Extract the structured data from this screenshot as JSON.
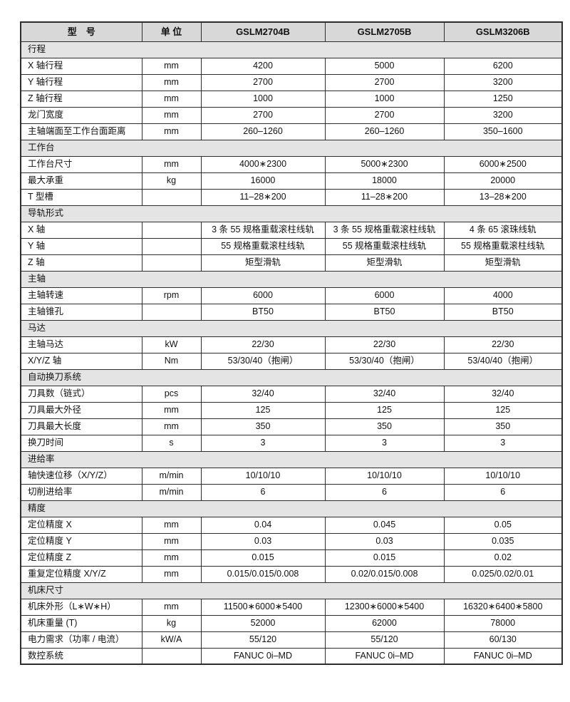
{
  "colors": {
    "border": "#2d2d2d",
    "header_bg": "#d8d8d8",
    "section_bg": "#e4e4e4",
    "text": "#111111",
    "page_bg": "#ffffff"
  },
  "header": {
    "col_model": "型　号",
    "col_unit": "单 位",
    "models": [
      "GSLM2704B",
      "GSLM2705B",
      "GSLM3206B"
    ]
  },
  "sections": [
    {
      "title": "行程",
      "rows": [
        {
          "label": "X 轴行程",
          "unit": "mm",
          "values": [
            "4200",
            "5000",
            "6200"
          ]
        },
        {
          "label": "Y 轴行程",
          "unit": "mm",
          "values": [
            "2700",
            "2700",
            "3200"
          ]
        },
        {
          "label": "Z 轴行程",
          "unit": "mm",
          "values": [
            "1000",
            "1000",
            "1250"
          ]
        },
        {
          "label": "龙门宽度",
          "unit": "mm",
          "values": [
            "2700",
            "2700",
            "3200"
          ]
        },
        {
          "label": "主轴端面至工作台面距离",
          "unit": "mm",
          "values": [
            "260–1260",
            "260–1260",
            "350–1600"
          ]
        }
      ]
    },
    {
      "title": "工作台",
      "rows": [
        {
          "label": "工作台尺寸",
          "unit": "mm",
          "values": [
            "4000∗2300",
            "5000∗2300",
            "6000∗2500"
          ]
        },
        {
          "label": "最大承重",
          "unit": "kg",
          "values": [
            "16000",
            "18000",
            "20000"
          ]
        },
        {
          "label": "T 型槽",
          "unit": "",
          "values": [
            "11–28∗200",
            "11–28∗200",
            "13–28∗200"
          ]
        }
      ]
    },
    {
      "title": "导轨形式",
      "rows": [
        {
          "label": "X 轴",
          "unit": "",
          "values": [
            "3 条 55 规格重载滚柱线轨",
            "3 条 55 规格重载滚柱线轨",
            "4 条 65 滚珠线轨"
          ]
        },
        {
          "label": "Y 轴",
          "unit": "",
          "values": [
            "55 规格重载滚柱线轨",
            "55 规格重载滚柱线轨",
            "55 规格重载滚柱线轨"
          ]
        },
        {
          "label": "Z 轴",
          "unit": "",
          "values": [
            "矩型滑轨",
            "矩型滑轨",
            "矩型滑轨"
          ]
        }
      ]
    },
    {
      "title": "主轴",
      "rows": [
        {
          "label": "主轴转速",
          "unit": "rpm",
          "values": [
            "6000",
            "6000",
            "4000"
          ]
        },
        {
          "label": "主轴锥孔",
          "unit": "",
          "values": [
            "BT50",
            "BT50",
            "BT50"
          ]
        }
      ]
    },
    {
      "title": "马达",
      "rows": [
        {
          "label": "主轴马达",
          "unit": "kW",
          "values": [
            "22/30",
            "22/30",
            "22/30"
          ]
        },
        {
          "label": "X/Y/Z 轴",
          "unit": "Nm",
          "values": [
            "53/30/40（抱闸）",
            "53/30/40（抱闸）",
            "53/40/40（抱闸）"
          ]
        }
      ]
    },
    {
      "title": "自动换刀系统",
      "rows": [
        {
          "label": "刀具数（链式）",
          "unit": "pcs",
          "values": [
            "32/40",
            "32/40",
            "32/40"
          ]
        },
        {
          "label": "刀具最大外径",
          "unit": "mm",
          "values": [
            "125",
            "125",
            "125"
          ]
        },
        {
          "label": "刀具最大长度",
          "unit": "mm",
          "values": [
            "350",
            "350",
            "350"
          ]
        },
        {
          "label": "换刀时间",
          "unit": "s",
          "values": [
            "3",
            "3",
            "3"
          ]
        }
      ]
    },
    {
      "title": "进给率",
      "rows": [
        {
          "label": "轴快速位移（X/Y/Z）",
          "unit": "m/min",
          "values": [
            "10/10/10",
            "10/10/10",
            "10/10/10"
          ]
        },
        {
          "label": "切削进给率",
          "unit": "m/min",
          "values": [
            "6",
            "6",
            "6"
          ]
        }
      ]
    },
    {
      "title": "精度",
      "rows": [
        {
          "label": "定位精度 X",
          "unit": "mm",
          "values": [
            "0.04",
            "0.045",
            "0.05"
          ]
        },
        {
          "label": "定位精度 Y",
          "unit": "mm",
          "values": [
            "0.03",
            "0.03",
            "0.035"
          ]
        },
        {
          "label": "定位精度 Z",
          "unit": "mm",
          "values": [
            "0.015",
            "0.015",
            "0.02"
          ]
        },
        {
          "label": "重复定位精度 X/Y/Z",
          "unit": "mm",
          "values": [
            "0.015/0.015/0.008",
            "0.02/0.015/0.008",
            "0.025/0.02/0.01"
          ]
        }
      ]
    },
    {
      "title": "机床尺寸",
      "rows": [
        {
          "label": "机床外形（L∗W∗H）",
          "unit": "mm",
          "values": [
            "11500∗6000∗5400",
            "12300∗6000∗5400",
            "16320∗6400∗5800"
          ]
        },
        {
          "label": "机床重量 (T)",
          "unit": "kg",
          "values": [
            "52000",
            "62000",
            "78000"
          ]
        },
        {
          "label": "电力需求（功率 / 电流）",
          "unit": "kW/A",
          "values": [
            "55/120",
            "55/120",
            "60/130"
          ]
        },
        {
          "label": "数控系统",
          "unit": "",
          "values": [
            "FANUC 0i–MD",
            "FANUC 0i–MD",
            "FANUC 0i–MD"
          ]
        }
      ]
    }
  ]
}
